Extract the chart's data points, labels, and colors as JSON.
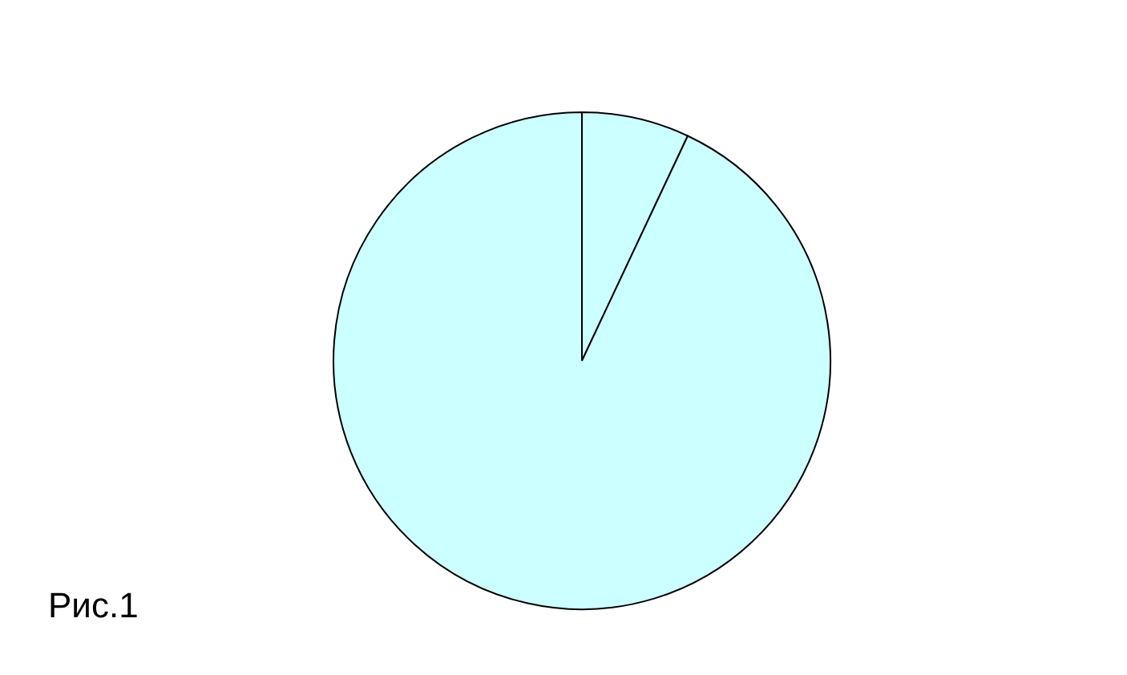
{
  "chart_data": {
    "type": "pie",
    "categories": [
      null,
      null
    ],
    "values": [
      7,
      93
    ],
    "colors": [
      "#ccffff",
      "#ccffff"
    ],
    "annotations": [
      "Рис.1"
    ]
  }
}
